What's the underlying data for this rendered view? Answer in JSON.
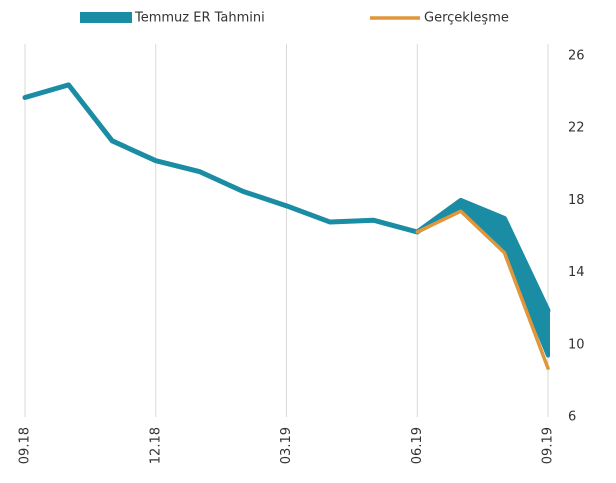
{
  "chart_data": {
    "type": "line",
    "categories": [
      "09.18",
      null,
      null,
      "12.18",
      null,
      null,
      "03.19",
      null,
      null,
      "06.19",
      null,
      null,
      "09.19"
    ],
    "series": [
      {
        "name": "Temmuz ER Tahmini",
        "color": "#1a8ca3",
        "values": [
          23.7,
          24.4,
          21.3,
          20.2,
          19.6,
          18.5,
          17.7,
          16.8,
          16.9,
          16.25,
          18.0,
          17.0,
          11.9
        ],
        "low": [
          null,
          null,
          null,
          null,
          null,
          null,
          null,
          null,
          null,
          16.25,
          17.5,
          15.3,
          9.4
        ]
      },
      {
        "name": "Gerçekleşme",
        "color": "#e0963a",
        "values": [
          null,
          null,
          null,
          null,
          null,
          null,
          null,
          null,
          null,
          16.25,
          17.4,
          15.1,
          8.7
        ]
      }
    ],
    "ylim": [
      6,
      26
    ],
    "yticks": [
      6,
      10,
      14,
      18,
      22,
      26
    ],
    "grid": "x"
  }
}
